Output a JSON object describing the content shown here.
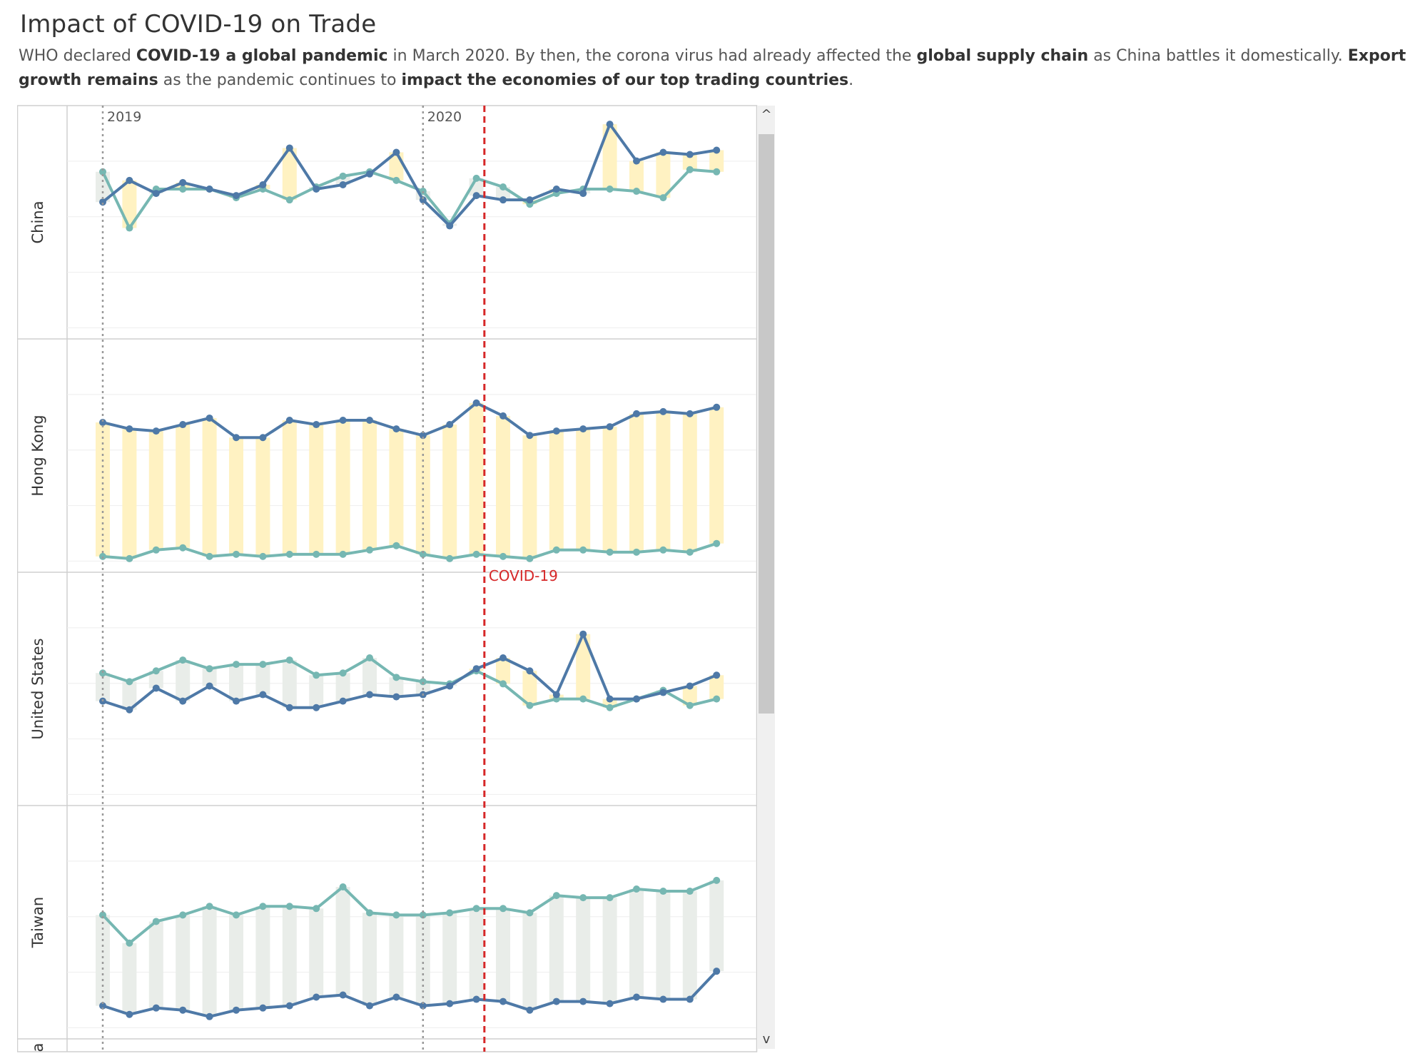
{
  "title": "Impact of COVID-19 on Trade",
  "subtitle": [
    {
      "text": "WHO declared ",
      "bold": false
    },
    {
      "text": "COVID-19 a global pandemic",
      "bold": true
    },
    {
      "text": " in March 2020. By then, the corona virus had already affected the ",
      "bold": false
    },
    {
      "text": "global supply chain",
      "bold": true
    },
    {
      "text": " as China battles it domestically. ",
      "bold": false
    },
    {
      "text": "Export growth remains",
      "bold": true
    },
    {
      "text": " as the pandemic continues to ",
      "bold": false
    },
    {
      "text": "impact the economies of our top trading countries",
      "bold": true
    },
    {
      "text": ".",
      "bold": false
    }
  ],
  "colors": {
    "blue_series": "#4e79a7",
    "teal_series": "#76b7b2",
    "band_blue_above": "#fff2c2",
    "band_teal_above": "#e9ede9",
    "covid_line": "#d62728",
    "year_line": "#999999",
    "grid": "#eeeeee"
  },
  "chart_data": {
    "type": "line",
    "x_unit": "month",
    "x_start": "2019-01",
    "months": 24,
    "year_markers": [
      {
        "label": "2019",
        "month_index": 0
      },
      {
        "label": "2020",
        "month_index": 12
      }
    ],
    "annotation": {
      "label": "COVID-19",
      "month_index": 14.3
    },
    "y_range": [
      0,
      100
    ],
    "panels": [
      {
        "label": "China",
        "blue": [
          60,
          70,
          64,
          69,
          66,
          63,
          68,
          85,
          66,
          68,
          73,
          83,
          61,
          49,
          63,
          61,
          61,
          66,
          64,
          96,
          79,
          83,
          82,
          84
        ],
        "teal": [
          74,
          48,
          66,
          66,
          66,
          62,
          66,
          61,
          67,
          72,
          74,
          70,
          65,
          50,
          71,
          67,
          59,
          64,
          66,
          66,
          65,
          62,
          75,
          74
        ]
      },
      {
        "label": "Hong Kong",
        "blue": [
          66,
          63,
          62,
          65,
          68,
          59,
          59,
          67,
          65,
          67,
          67,
          63,
          60,
          65,
          75,
          69,
          60,
          62,
          63,
          64,
          70,
          71,
          70,
          73
        ],
        "teal": [
          4,
          3,
          7,
          8,
          4,
          5,
          4,
          5,
          5,
          5,
          7,
          9,
          5,
          3,
          5,
          4,
          3,
          7,
          7,
          6,
          6,
          7,
          6,
          10
        ]
      },
      {
        "label": "United States",
        "blue": [
          45,
          41,
          51,
          45,
          52,
          45,
          48,
          42,
          42,
          45,
          48,
          47,
          48,
          52,
          60,
          65,
          59,
          48,
          76,
          46,
          46,
          49,
          52,
          57
        ],
        "teal": [
          58,
          54,
          59,
          64,
          60,
          62,
          62,
          64,
          57,
          58,
          65,
          56,
          54,
          53,
          59,
          53,
          43,
          46,
          46,
          42,
          46,
          50,
          43,
          46
        ]
      },
      {
        "label": "Taiwan",
        "blue": [
          12,
          8,
          11,
          10,
          7,
          10,
          11,
          12,
          16,
          17,
          12,
          16,
          12,
          13,
          15,
          14,
          10,
          14,
          14,
          13,
          16,
          15,
          15,
          28
        ],
        "teal": [
          54,
          41,
          51,
          54,
          58,
          54,
          58,
          58,
          57,
          67,
          55,
          54,
          54,
          55,
          57,
          57,
          55,
          63,
          62,
          62,
          66,
          65,
          65,
          70
        ]
      }
    ],
    "partial_next_panel_label": "a"
  },
  "scrollbar": {
    "up_arrow": "^",
    "down_arrow": "v"
  }
}
